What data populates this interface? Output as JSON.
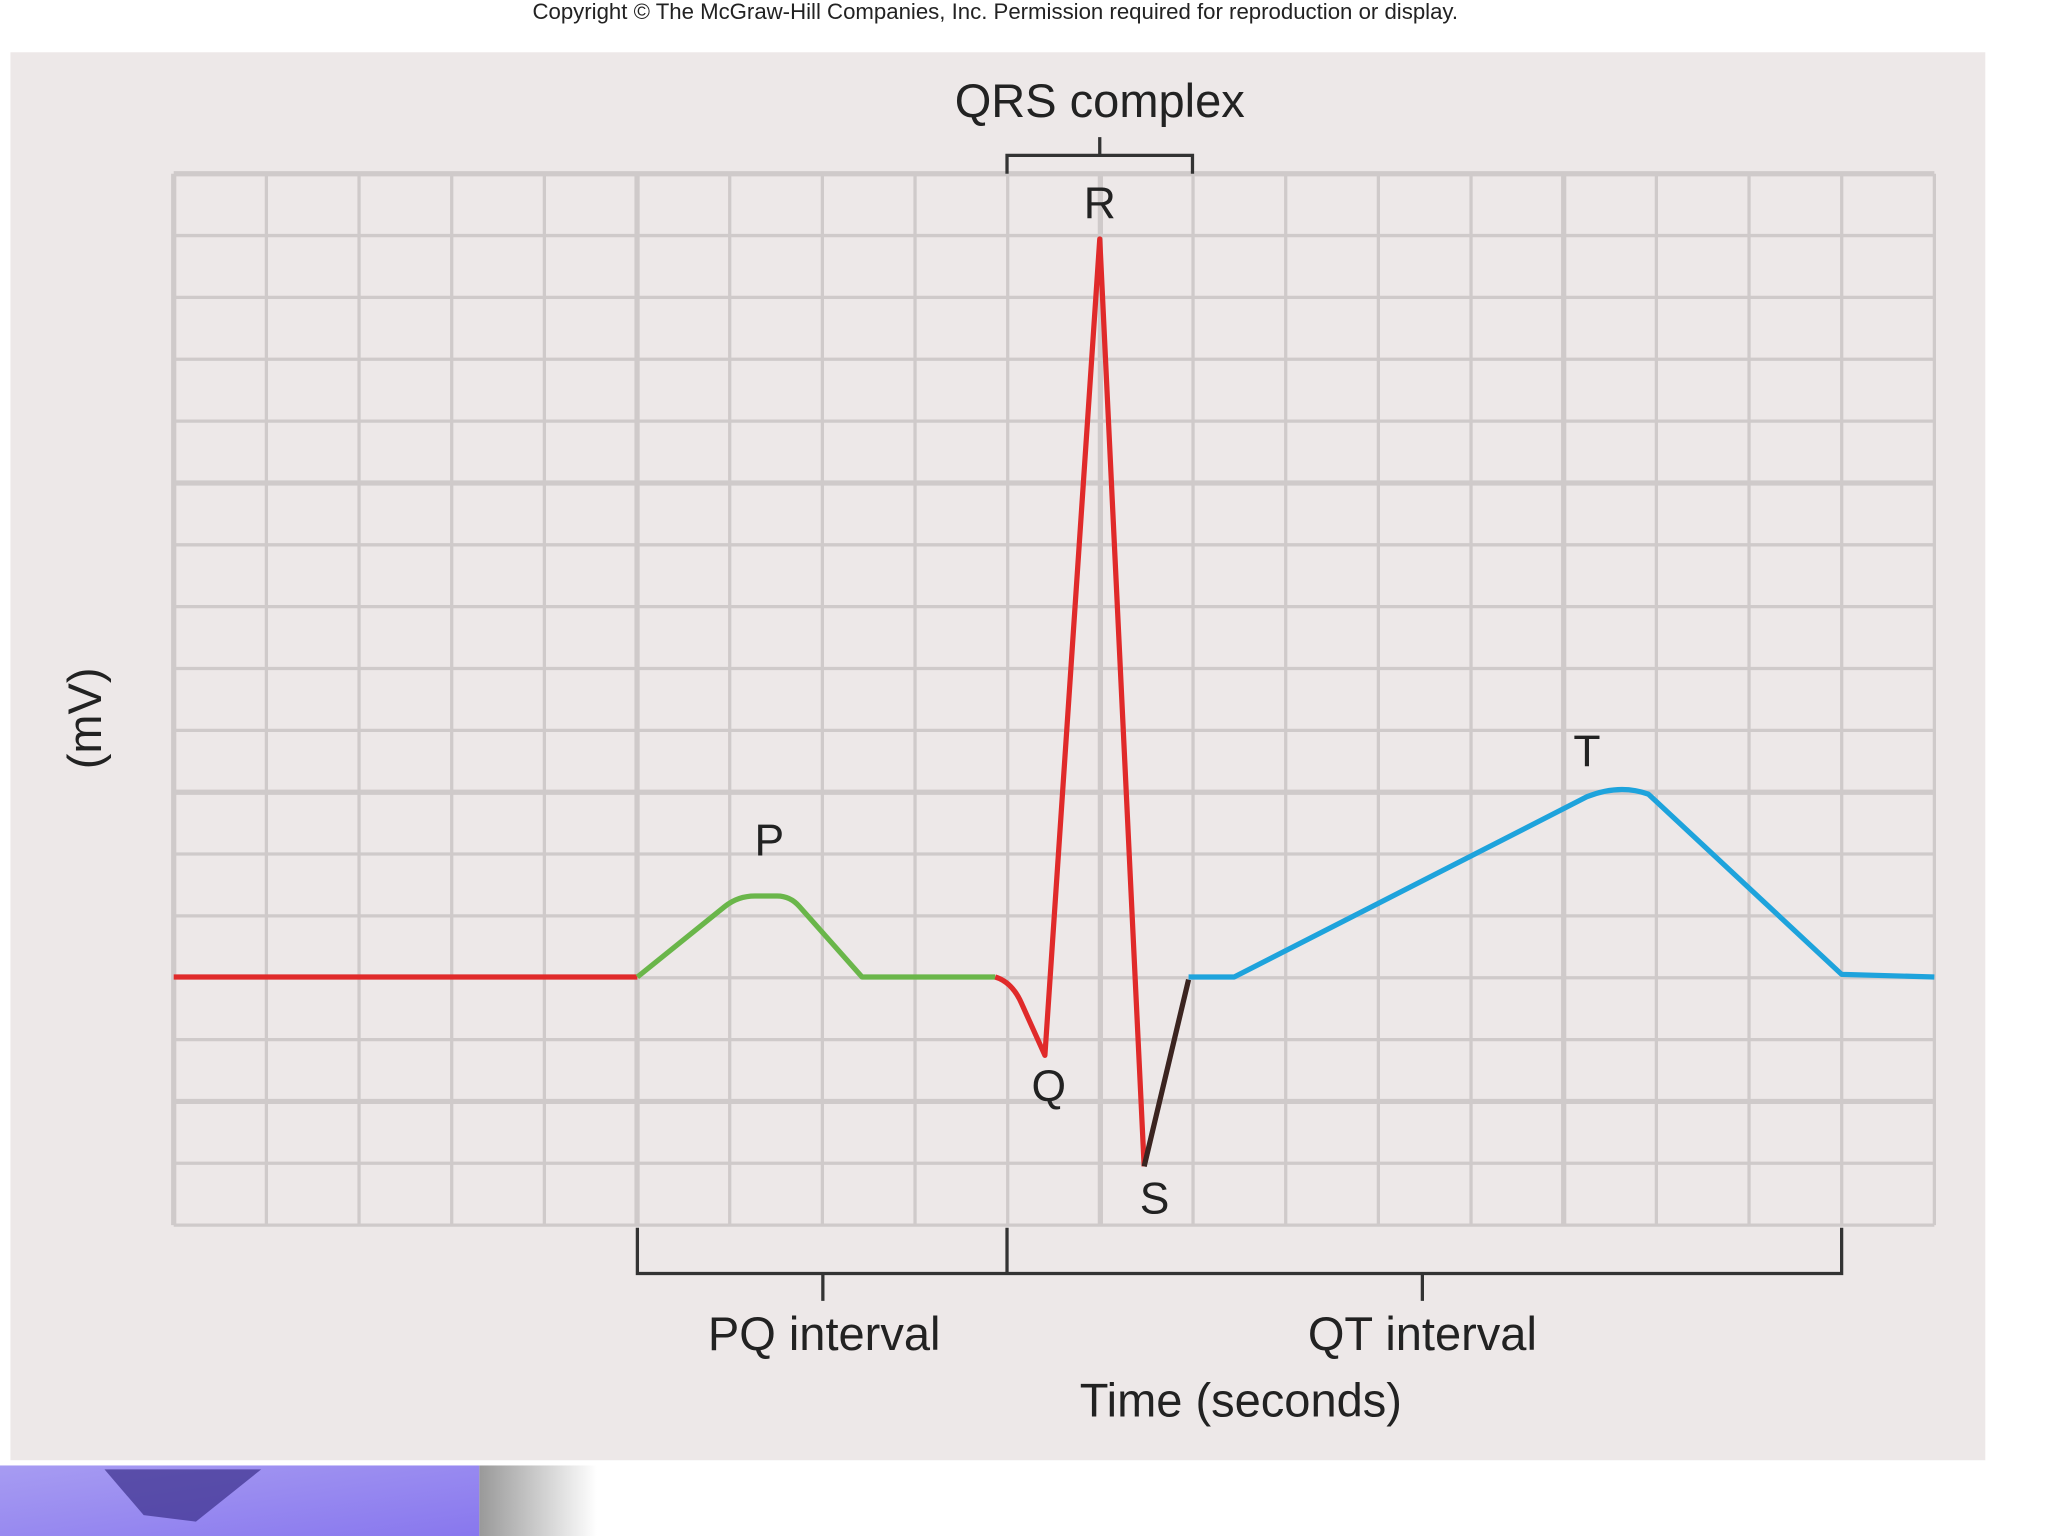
{
  "copyright": "Copyright © The McGraw-Hill Companies, Inc. Permission required for reproduction or display.",
  "brackets": {
    "qrs": "QRS complex",
    "pq": "PQ interval",
    "qt": "QT interval"
  },
  "waves": {
    "p": "P",
    "q": "Q",
    "r": "R",
    "s": "S",
    "t": "T"
  },
  "axes": {
    "x": "Time (seconds)",
    "y": "(mV)"
  }
}
